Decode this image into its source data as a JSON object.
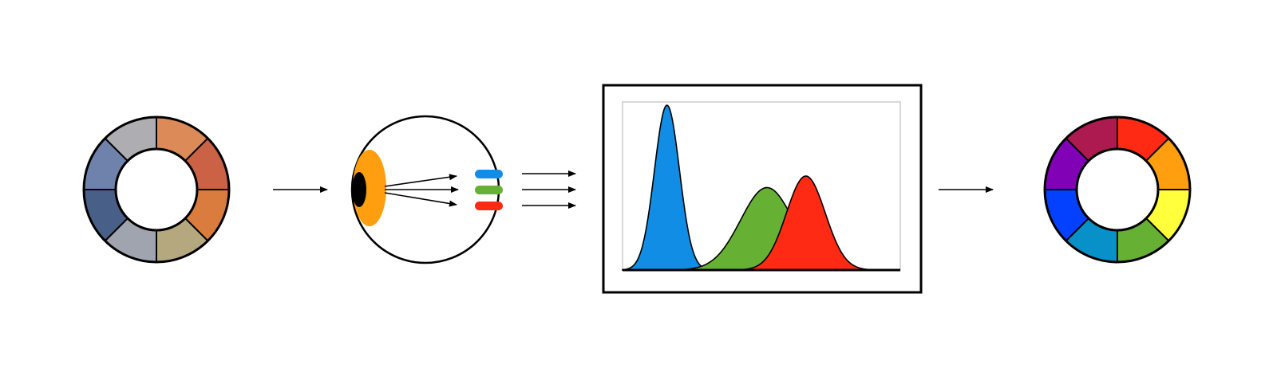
{
  "stages": [
    {
      "id": "input-color-wheel",
      "type": "color-wheel"
    },
    {
      "id": "eye",
      "type": "eye-diagram"
    },
    {
      "id": "cone-response-plot",
      "type": "spectral-curves"
    },
    {
      "id": "output-color-wheel",
      "type": "color-wheel"
    }
  ],
  "input_wheel": {
    "segments": [
      "#DC8A58",
      "#CB6245",
      "#DA7C3E",
      "#B6A87E",
      "#A0A4AF",
      "#485F87",
      "#6F82AC",
      "#ADADB2"
    ]
  },
  "eye": {
    "lens_color": "#FF9F0F",
    "pupil_color": "#000000",
    "cone_colors": [
      "#118DE5",
      "#66B033",
      "#FF2A14"
    ],
    "cone_icons": [
      "blue-cone-icon",
      "green-cone-icon",
      "red-cone-icon"
    ]
  },
  "output_wheel": {
    "segments": [
      "#FF2A14",
      "#FF9F0F",
      "#FFFF3B",
      "#66B033",
      "#0791C8",
      "#0441FF",
      "#8101B6",
      "#AD1A4F"
    ]
  },
  "chart_data": {
    "type": "area",
    "title": "",
    "xlabel": "",
    "ylabel": "",
    "grid": false,
    "legend": "none",
    "series": [
      {
        "color": "#118DE5",
        "peak_x": 0.16,
        "peak_y": 1.0,
        "width": 0.045
      },
      {
        "color": "#66B033",
        "peak_x": 0.52,
        "peak_y": 0.5,
        "width": 0.095
      },
      {
        "color": "#FF2A14",
        "peak_x": 0.66,
        "peak_y": 0.57,
        "width": 0.07
      }
    ]
  }
}
